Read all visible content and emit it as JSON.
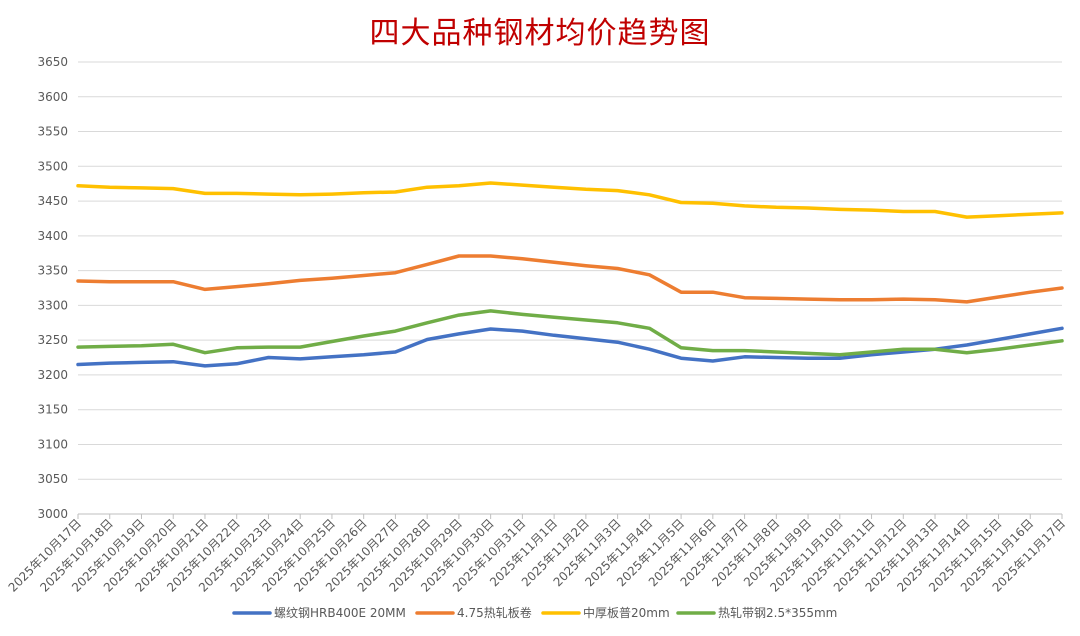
{
  "chart_data": {
    "type": "line",
    "title": "四大品种钢材均价趋势图",
    "xlabel": "",
    "ylabel": "",
    "ylim": [
      3000,
      3650
    ],
    "yticks": [
      3000,
      3050,
      3100,
      3150,
      3200,
      3250,
      3300,
      3350,
      3400,
      3450,
      3500,
      3550,
      3600,
      3650
    ],
    "grid": true,
    "legend_position": "bottom",
    "x": [
      "2025年10月17日",
      "2025年10月18日",
      "2025年10月19日",
      "2025年10月20日",
      "2025年10月21日",
      "2025年10月22日",
      "2025年10月23日",
      "2025年10月24日",
      "2025年10月25日",
      "2025年10月26日",
      "2025年10月27日",
      "2025年10月28日",
      "2025年10月29日",
      "2025年10月30日",
      "2025年10月31日",
      "2025年11月1日",
      "2025年11月2日",
      "2025年11月3日",
      "2025年11月4日",
      "2025年11月5日",
      "2025年11月6日",
      "2025年11月7日",
      "2025年11月8日",
      "2025年11月9日",
      "2025年11月10日",
      "2025年11月11日",
      "2025年11月12日",
      "2025年11月13日",
      "2025年11月14日",
      "2025年11月15日",
      "2025年11月16日",
      "2025年11月17日"
    ],
    "series": [
      {
        "name": "螺纹钢HRB400E 20MM",
        "color": "#4472c4",
        "values": [
          3215,
          3217,
          3218,
          3219,
          3213,
          3216,
          3225,
          3223,
          3226,
          3229,
          3233,
          3251,
          3259,
          3266,
          3263,
          3257,
          3252,
          3247,
          3237,
          3224,
          3220,
          3226,
          3225,
          3224,
          3224,
          3229,
          3233,
          3237,
          3243,
          3251,
          3259,
          3267
        ]
      },
      {
        "name": "4.75热轧板卷",
        "color": "#ed7d31",
        "values": [
          3335,
          3334,
          3334,
          3334,
          3323,
          3327,
          3331,
          3336,
          3339,
          3343,
          3347,
          3359,
          3371,
          3371,
          3367,
          3362,
          3357,
          3353,
          3344,
          3319,
          3319,
          3311,
          3310,
          3309,
          3308,
          3308,
          3309,
          3308,
          3305,
          3312,
          3319,
          3325
        ]
      },
      {
        "name": "中厚板普20mm",
        "color": "#ffc000",
        "values": [
          3472,
          3470,
          3469,
          3468,
          3461,
          3461,
          3460,
          3459,
          3460,
          3462,
          3463,
          3470,
          3472,
          3476,
          3473,
          3470,
          3467,
          3465,
          3459,
          3448,
          3447,
          3443,
          3441,
          3440,
          3438,
          3437,
          3435,
          3435,
          3427,
          3429,
          3431,
          3433
        ]
      },
      {
        "name": "热轧带钢2.5*355mm",
        "color": "#70ad47",
        "values": [
          3240,
          3241,
          3242,
          3244,
          3232,
          3239,
          3240,
          3240,
          3248,
          3256,
          3263,
          3275,
          3286,
          3292,
          3287,
          3283,
          3279,
          3275,
          3267,
          3239,
          3235,
          3235,
          3233,
          3231,
          3229,
          3233,
          3237,
          3237,
          3232,
          3237,
          3243,
          3249
        ]
      }
    ]
  }
}
